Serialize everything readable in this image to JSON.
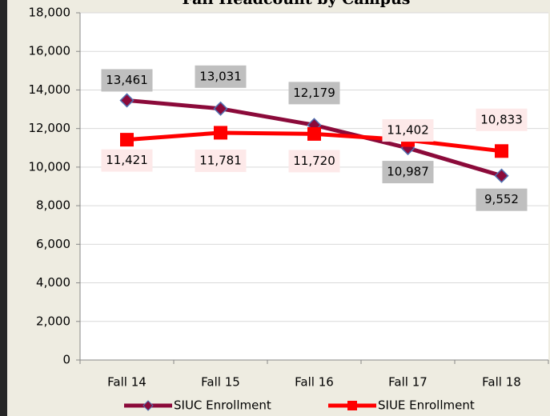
{
  "chart_data": {
    "type": "line",
    "title": "Fall Headcount by Campus",
    "categories": [
      "Fall 14",
      "Fall 15",
      "Fall 16",
      "Fall 17",
      "Fall 18"
    ],
    "series": [
      {
        "name": "SIUC Enrollment",
        "color": "#8b0a3a",
        "marker": "diamond",
        "values": [
          13461,
          13031,
          12179,
          10987,
          9552
        ],
        "value_labels": [
          "13,461",
          "13,031",
          "12,179",
          "10,987",
          "9,552"
        ]
      },
      {
        "name": "SIUE Enrollment",
        "color": "#ff0000",
        "marker": "square",
        "values": [
          11421,
          11781,
          11720,
          11402,
          10833
        ],
        "value_labels": [
          "11,421",
          "11,781",
          "11,720",
          "11,402",
          "10,833"
        ]
      }
    ],
    "ylim": [
      0,
      18000
    ],
    "yticks": [
      0,
      {
        "value": 2000,
        "label": "2,000"
      },
      {
        "value": 4000,
        "label": "4,000"
      },
      {
        "value": 6000,
        "label": "6,000"
      },
      {
        "value": 8000,
        "label": "8,000"
      },
      {
        "value": 10000,
        "label": "10,000"
      },
      {
        "value": 12000,
        "label": "12,000"
      },
      {
        "value": 14000,
        "label": "14,000"
      },
      {
        "value": 16000,
        "label": "16,000"
      },
      {
        "value": 18000,
        "label": "18,000"
      }
    ],
    "grid": true,
    "legend": "bottom"
  }
}
